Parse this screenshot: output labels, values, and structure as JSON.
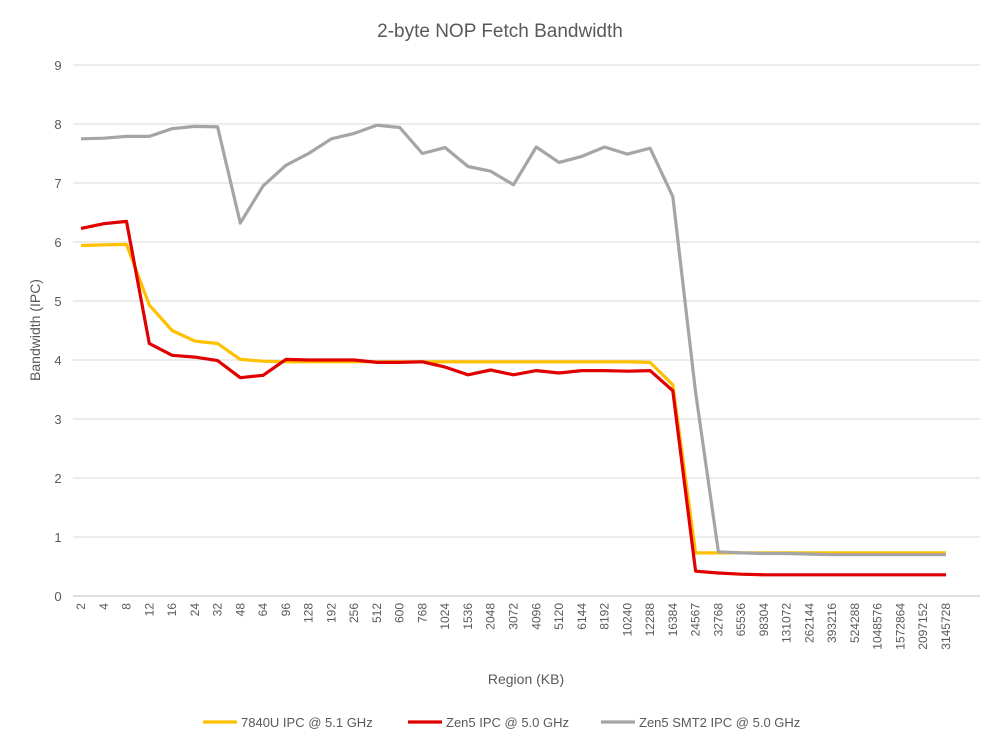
{
  "chart_data": {
    "type": "line",
    "title": "2-byte NOP Fetch Bandwidth",
    "xlabel": "Region (KB)",
    "ylabel": "Bandwidth (IPC)",
    "ylim": [
      0,
      9
    ],
    "yticks": [
      "0",
      "1",
      "2",
      "3",
      "4",
      "5",
      "6",
      "7",
      "8",
      "9"
    ],
    "grid": true,
    "legend_position": "bottom",
    "categories": [
      "2",
      "4",
      "8",
      "12",
      "16",
      "24",
      "32",
      "48",
      "64",
      "96",
      "128",
      "192",
      "256",
      "512",
      "600",
      "768",
      "1024",
      "1536",
      "2048",
      "3072",
      "4096",
      "5120",
      "6144",
      "8192",
      "10240",
      "12288",
      "16384",
      "24567",
      "32768",
      "65536",
      "98304",
      "131072",
      "262144",
      "393216",
      "524288",
      "1048576",
      "1572864",
      "2097152",
      "3145728"
    ],
    "series": [
      {
        "name": "7840U IPC @ 5.1 GHz",
        "color": "#FFC000",
        "values": [
          5.94,
          5.95,
          5.96,
          4.93,
          4.5,
          4.32,
          4.28,
          4.01,
          3.98,
          3.97,
          3.97,
          3.97,
          3.97,
          3.97,
          3.97,
          3.97,
          3.97,
          3.97,
          3.97,
          3.97,
          3.97,
          3.97,
          3.97,
          3.97,
          3.97,
          3.96,
          3.58,
          0.73,
          0.73,
          0.73,
          0.73,
          0.73,
          0.73,
          0.73,
          0.73,
          0.73,
          0.73,
          0.73,
          0.73
        ]
      },
      {
        "name": "Zen5 IPC @ 5.0 GHz",
        "color": "#E00000",
        "values": [
          6.23,
          6.31,
          6.35,
          4.28,
          4.08,
          4.05,
          3.99,
          3.7,
          3.74,
          4.01,
          4.0,
          4.0,
          4.0,
          3.96,
          3.96,
          3.97,
          3.88,
          3.75,
          3.83,
          3.75,
          3.82,
          3.78,
          3.82,
          3.82,
          3.81,
          3.82,
          3.48,
          0.42,
          0.39,
          0.37,
          0.36,
          0.36,
          0.36,
          0.36,
          0.36,
          0.36,
          0.36,
          0.36,
          0.36
        ]
      },
      {
        "name": "Zen5 SMT2 IPC @ 5.0 GHz",
        "color": "#A5A5A5",
        "values": [
          7.75,
          7.76,
          7.79,
          7.79,
          7.92,
          7.96,
          7.95,
          6.32,
          6.95,
          7.3,
          7.5,
          7.75,
          7.84,
          7.98,
          7.94,
          7.5,
          7.6,
          7.28,
          7.2,
          6.97,
          7.61,
          7.35,
          7.45,
          7.61,
          7.49,
          7.59,
          6.77,
          3.45,
          0.75,
          0.73,
          0.72,
          0.72,
          0.71,
          0.7,
          0.7,
          0.7,
          0.7,
          0.7,
          0.7
        ]
      }
    ]
  }
}
